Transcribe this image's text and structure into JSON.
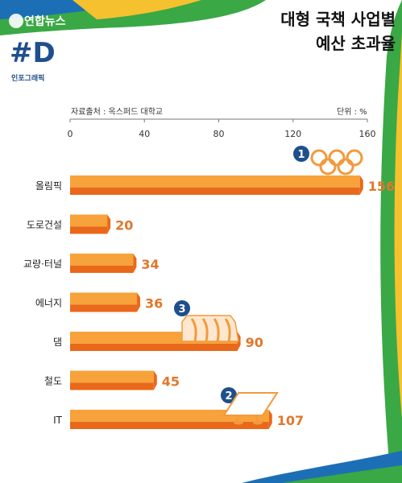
{
  "header": {
    "logo_text": "연합뉴스",
    "badge_hash": "#D",
    "badge_sub": "인포그래픽",
    "title_line1": "대형 국책 사업별",
    "title_line2": "예산 초과율"
  },
  "meta": {
    "source": "자료출처 : 옥스퍼드 대학교",
    "unit": "단위 : %"
  },
  "colors": {
    "bar_top": "#f7a23a",
    "bar_bottom": "#e9681a",
    "value_text": "#e0772a",
    "marker": "#1f4f8c",
    "icon": "#f29a3c"
  },
  "chart_data": {
    "type": "bar",
    "orientation": "horizontal",
    "categories": [
      "올림픽",
      "도로건설",
      "교량·터널",
      "에너지",
      "댐",
      "철도",
      "IT"
    ],
    "values": [
      156,
      20,
      34,
      36,
      90,
      45,
      107
    ],
    "xlim": [
      0,
      160
    ],
    "xticks": [
      0,
      40,
      80,
      120,
      160
    ],
    "grid": false,
    "annotations": [
      {
        "label": "1",
        "category": "올림픽",
        "icon": "olympic-rings-icon"
      },
      {
        "label": "3",
        "category": "댐",
        "icon": "dam-icon"
      },
      {
        "label": "2",
        "category": "IT",
        "icon": "computer-monitor-icon"
      }
    ]
  }
}
